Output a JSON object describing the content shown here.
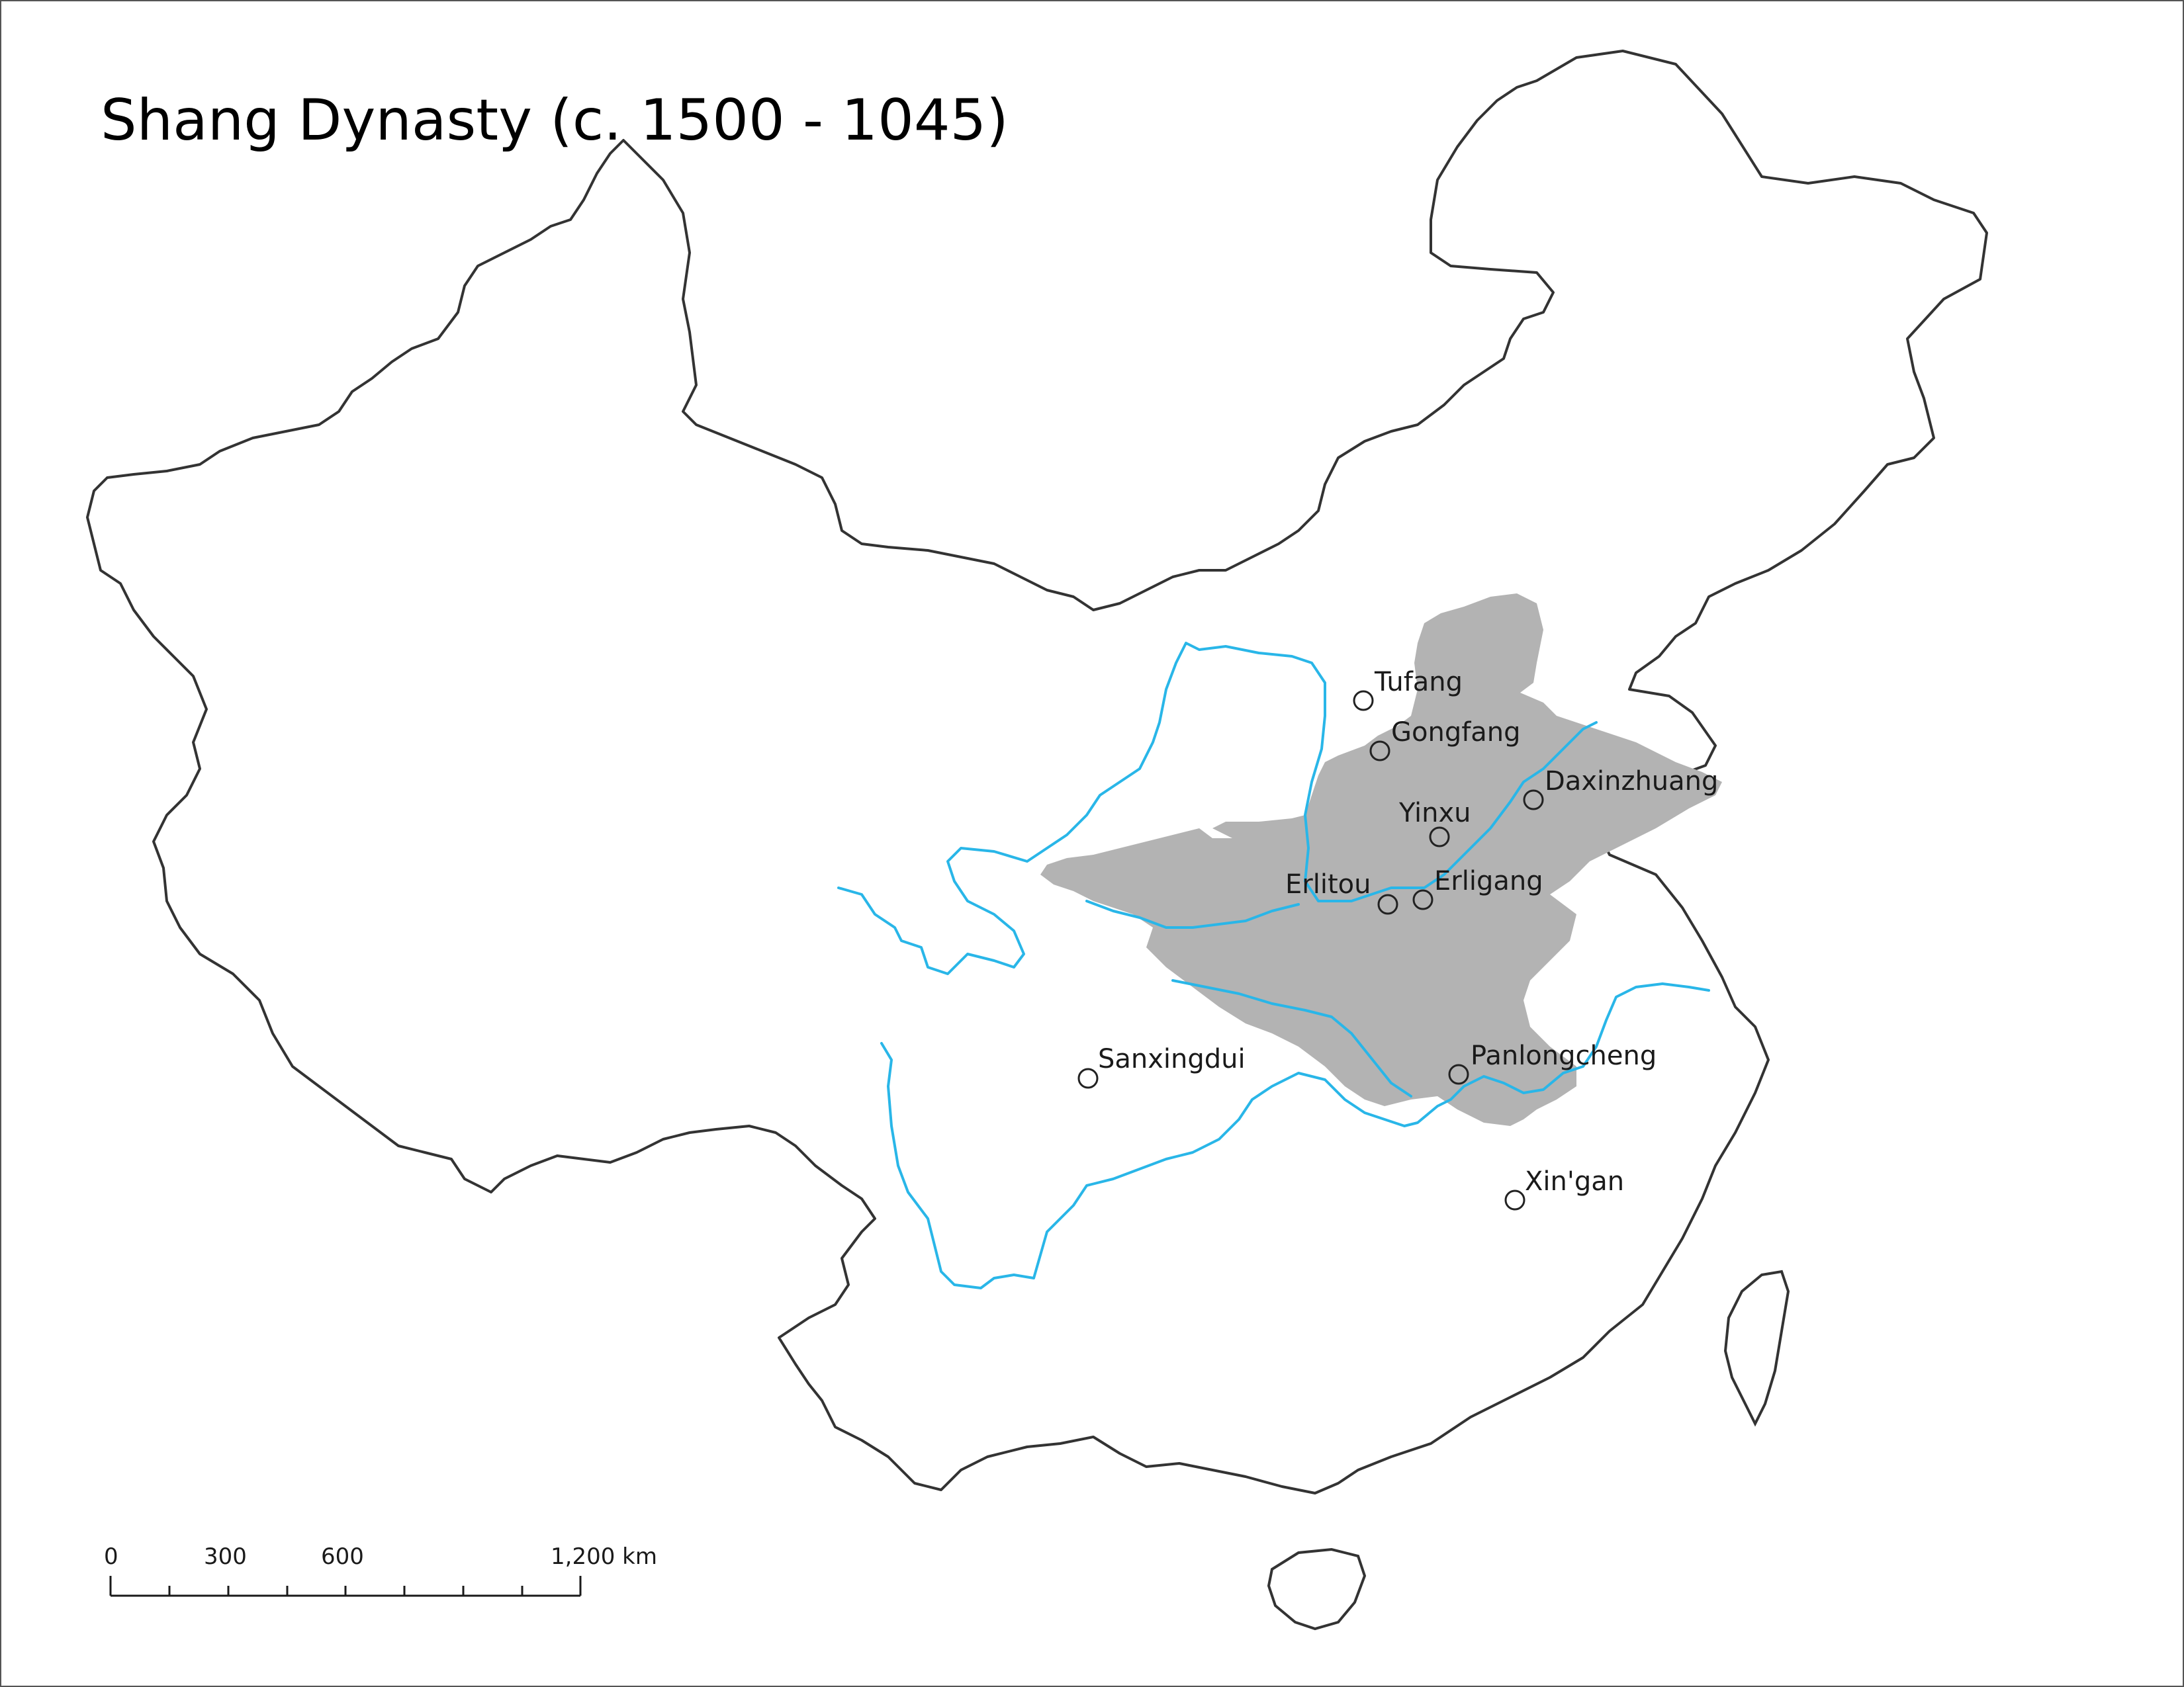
{
  "map": {
    "title": "Shang Dynasty (c. 1500 - 1045)",
    "colors": {
      "territory": "#b3b3b3",
      "river": "#29b6e8",
      "border": "#333333"
    },
    "sites": [
      {
        "id": "tufang",
        "label": "Tufang"
      },
      {
        "id": "gongfang",
        "label": "Gongfang"
      },
      {
        "id": "daxinzhuang",
        "label": "Daxinzhuang"
      },
      {
        "id": "yinxu",
        "label": "Yinxu"
      },
      {
        "id": "erlitou",
        "label": "Erlitou"
      },
      {
        "id": "erligang",
        "label": "Erligang"
      },
      {
        "id": "panlongcheng",
        "label": "Panlongcheng"
      },
      {
        "id": "sanxingdui",
        "label": "Sanxingdui"
      },
      {
        "id": "xingan",
        "label": "Xin'gan"
      }
    ],
    "scale_bar": {
      "labels": [
        "0",
        "300",
        "600",
        "1,200 km"
      ]
    }
  }
}
